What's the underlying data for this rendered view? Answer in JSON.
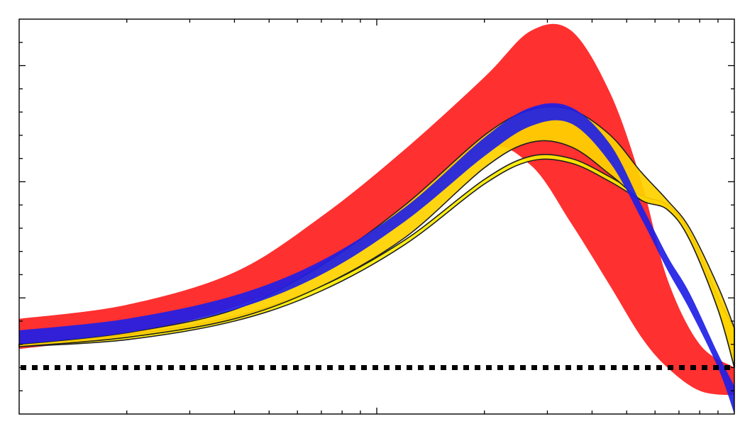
{
  "chart_data": {
    "type": "area",
    "title": "",
    "xlabel": "",
    "ylabel": "",
    "x_scale": "log",
    "x_ticks_labeled": false,
    "y_ticks_labeled": false,
    "grid": false,
    "legend": "none",
    "xlim": [
      0.1,
      10
    ],
    "ylim": [
      0,
      1.7
    ],
    "reference_line": {
      "style": "dotted",
      "color": "#000000",
      "y": 0.2
    },
    "series": [
      {
        "color": "#ff2020",
        "outline": false,
        "x": [
          0.1,
          0.2,
          0.4,
          0.7,
          1.2,
          2.0,
          2.7,
          3.5,
          4.5,
          5.5,
          6.5,
          8.0,
          10.0
        ],
        "lower": [
          0.28,
          0.34,
          0.46,
          0.62,
          0.86,
          1.14,
          1.07,
          0.82,
          0.55,
          0.33,
          0.2,
          0.1,
          0.08
        ],
        "upper": [
          0.41,
          0.47,
          0.61,
          0.85,
          1.14,
          1.45,
          1.65,
          1.65,
          1.38,
          1.0,
          0.58,
          0.3,
          0.2
        ]
      },
      {
        "color": "#ffee00",
        "outline": true,
        "x": [
          0.1,
          0.2,
          0.4,
          0.7,
          1.2,
          2.0,
          2.7,
          3.5,
          4.5,
          5.5,
          6.5,
          7.5,
          9.0,
          10.0
        ],
        "lower": [
          0.29,
          0.32,
          0.4,
          0.53,
          0.73,
          0.99,
          1.09,
          1.08,
          1.0,
          0.92,
          0.88,
          0.75,
          0.45,
          0.2
        ],
        "upper": [
          0.3,
          0.34,
          0.42,
          0.55,
          0.75,
          1.01,
          1.11,
          1.1,
          1.02,
          0.94,
          0.9,
          0.78,
          0.5,
          0.37
        ]
      },
      {
        "color": "#ffd200",
        "outline": true,
        "x": [
          0.1,
          0.2,
          0.4,
          0.7,
          1.2,
          2.0,
          2.7,
          3.5,
          4.5,
          5.5,
          6.5,
          7.5,
          9.0,
          10.0
        ],
        "lower": [
          0.29,
          0.33,
          0.41,
          0.55,
          0.76,
          1.06,
          1.17,
          1.15,
          1.03,
          0.92,
          0.88,
          0.75,
          0.45,
          0.2
        ],
        "upper": [
          0.3,
          0.35,
          0.45,
          0.64,
          0.9,
          1.2,
          1.31,
          1.31,
          1.2,
          1.04,
          0.92,
          0.8,
          0.55,
          0.37
        ]
      },
      {
        "color": "#1f1fe6",
        "outline": false,
        "x": [
          0.1,
          0.2,
          0.4,
          0.7,
          1.2,
          2.0,
          2.7,
          3.5,
          4.5,
          5.5,
          6.5,
          7.5,
          9.0,
          10.0
        ],
        "lower": [
          0.3,
          0.35,
          0.45,
          0.6,
          0.83,
          1.11,
          1.24,
          1.25,
          1.08,
          0.84,
          0.62,
          0.45,
          0.2,
          0.0
        ],
        "upper": [
          0.36,
          0.41,
          0.51,
          0.66,
          0.89,
          1.19,
          1.32,
          1.32,
          1.16,
          0.9,
          0.68,
          0.52,
          0.26,
          0.12
        ]
      }
    ]
  }
}
